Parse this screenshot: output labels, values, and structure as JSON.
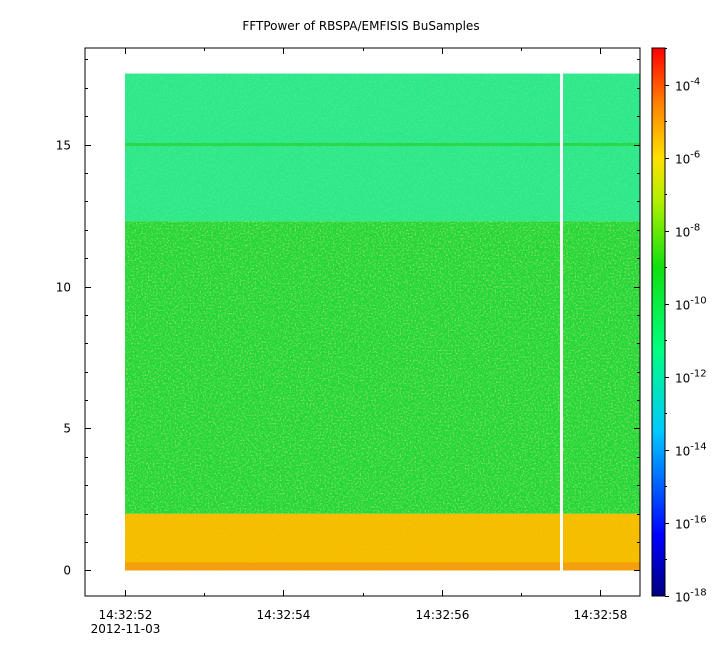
{
  "chart_data": {
    "type": "heatmap",
    "title": "FFTPower of RBSPA/EMFISIS  BuSamples",
    "xlabel": "",
    "ylabel": "",
    "x_ticks": [
      {
        "label": "14:32:52",
        "sublabel": "2012-11-03"
      },
      {
        "label": "14:32:54",
        "sublabel": ""
      },
      {
        "label": "14:32:56",
        "sublabel": ""
      },
      {
        "label": "14:32:58",
        "sublabel": ""
      }
    ],
    "y_ticks": [
      "0",
      "5",
      "10",
      "15"
    ],
    "ylim": [
      -0.9,
      18.4
    ],
    "xlim_seconds": [
      51.5,
      58.5
    ],
    "data_extent": {
      "x_start_seconds": 52.0,
      "x_end_seconds": 58.5,
      "y_min": 0,
      "y_max": 17.5
    },
    "gap_seconds": 57.5,
    "colorbar": {
      "scale": "log",
      "range": [
        1e-18,
        0.001
      ],
      "tick_exponents": [
        "-4",
        "-6",
        "-8",
        "-10",
        "-12",
        "-14",
        "-16",
        "-18"
      ],
      "tick_values": [
        -4,
        -6,
        -8,
        -10,
        -12,
        -14,
        -16,
        -18
      ],
      "tick_base": "10"
    },
    "bands": [
      {
        "y_from": 0,
        "y_to": 2.0,
        "log_power": -8.3
      },
      {
        "y_from": 2.0,
        "y_to": 12.3,
        "log_power": -10.2
      },
      {
        "y_from": 12.3,
        "y_to": 17.5,
        "log_power": -11.3
      }
    ],
    "line_feature": {
      "y": 15.0,
      "log_power": -10.6
    },
    "colors": {
      "band_low": "#f5c000",
      "band_mid": "#22d63a",
      "band_high": "#2ee88a",
      "line": "#2bd84a"
    }
  }
}
